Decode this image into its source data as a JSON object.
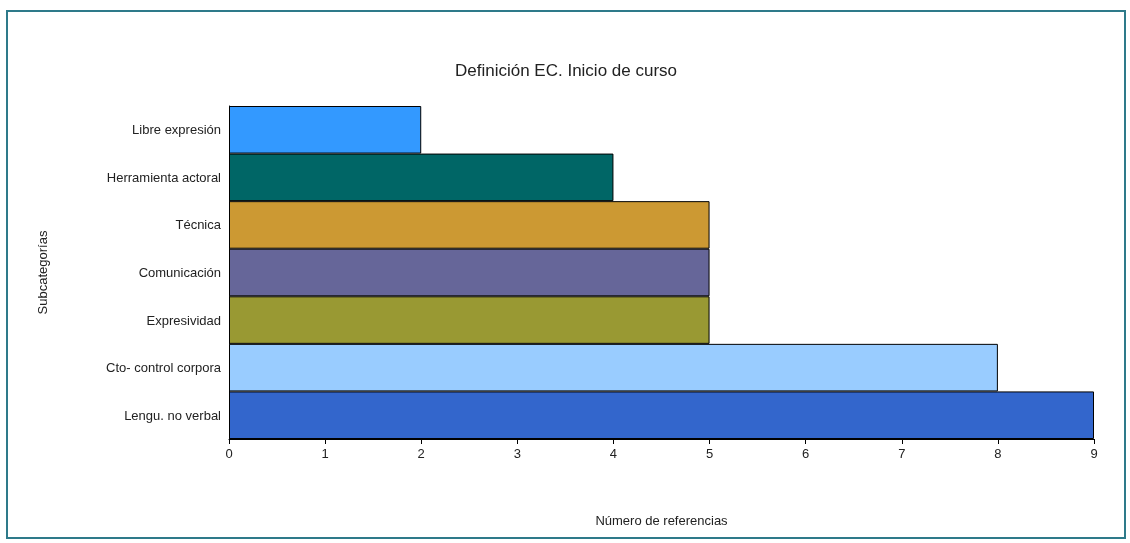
{
  "chart_data": {
    "type": "bar",
    "orientation": "horizontal",
    "title": "Definición EC. Inicio de curso",
    "xlabel": "Número de referencias",
    "ylabel": "Subcategorías",
    "categories": [
      "Libre expresión",
      "Herramienta actoral",
      "Técnica",
      "Comunicación",
      "Expresividad",
      "Cto- control corpora",
      "Lengu. no verbal"
    ],
    "values": [
      2,
      4,
      5,
      5,
      5,
      8,
      9
    ],
    "colors": [
      "#3399ff",
      "#006666",
      "#cc9933",
      "#666699",
      "#999933",
      "#99ccff",
      "#3366cc"
    ],
    "xlim": [
      0,
      9
    ],
    "xticks": [
      0,
      1,
      2,
      3,
      4,
      5,
      6,
      7,
      8,
      9
    ],
    "grid": false
  }
}
